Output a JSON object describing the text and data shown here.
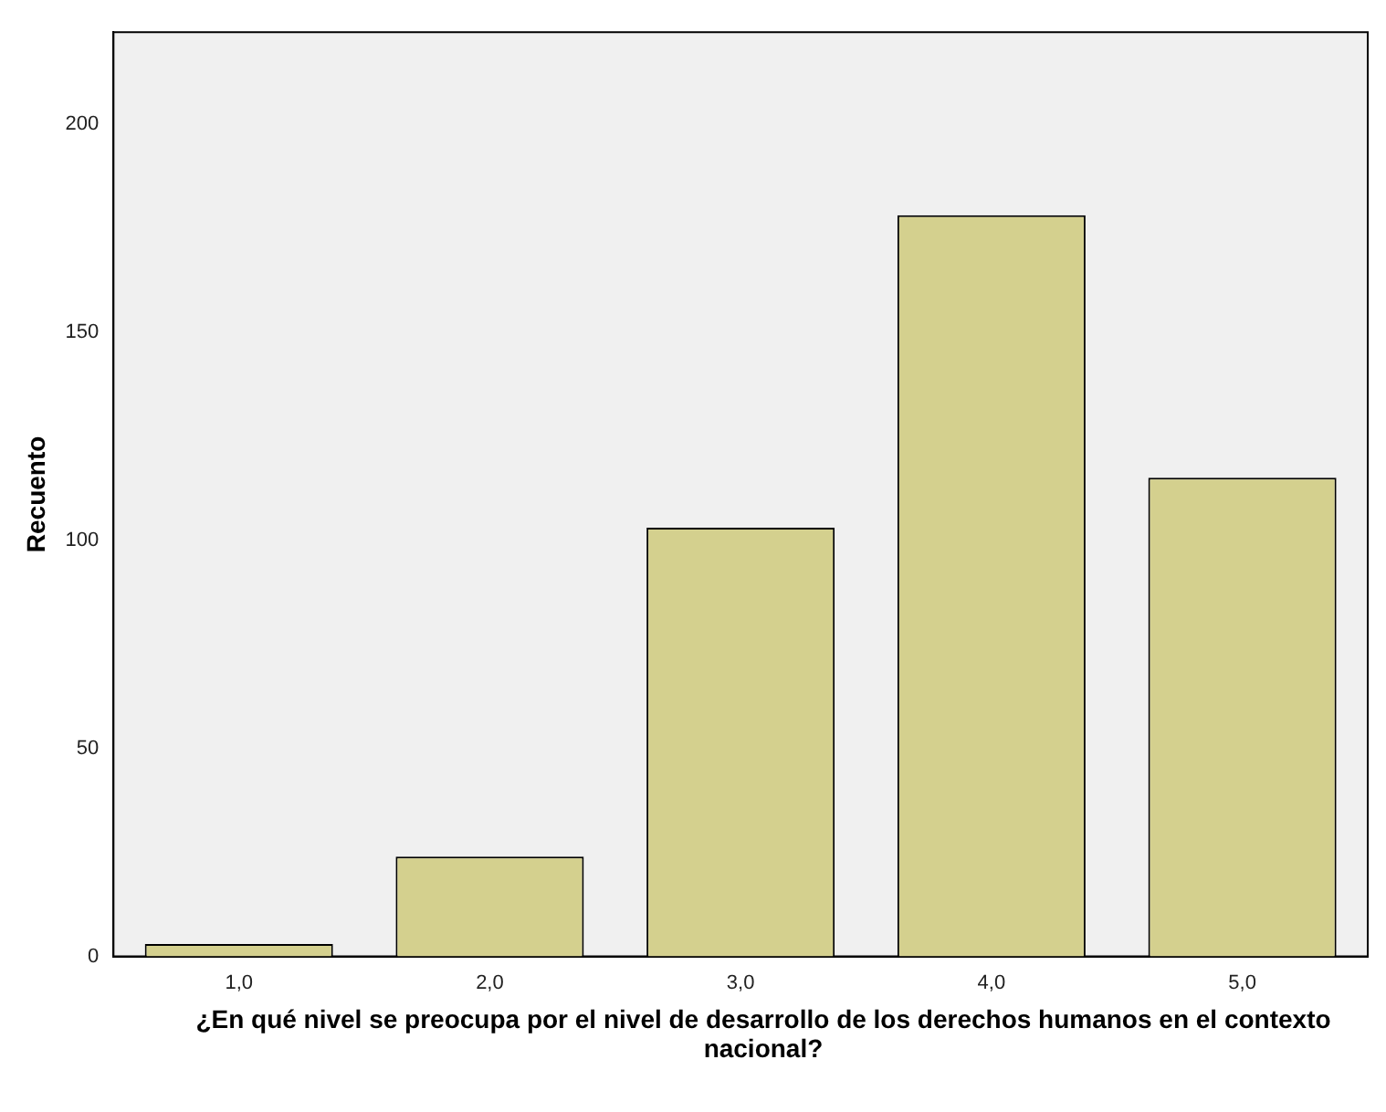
{
  "chart_data": {
    "type": "bar",
    "xlabel": "¿En qué nivel se preocupa por el nivel de desarrollo de los derechos humanos en el contexto nacional?",
    "ylabel": "Recuento",
    "categories": [
      "1,0",
      "2,0",
      "3,0",
      "4,0",
      "5,0"
    ],
    "values": [
      3,
      24,
      103,
      178,
      115
    ],
    "color": "#d4d08e",
    "ylim": [
      0,
      222
    ],
    "yticks": [
      0,
      50,
      100,
      150,
      200
    ],
    "grid": false,
    "legend": false
  }
}
